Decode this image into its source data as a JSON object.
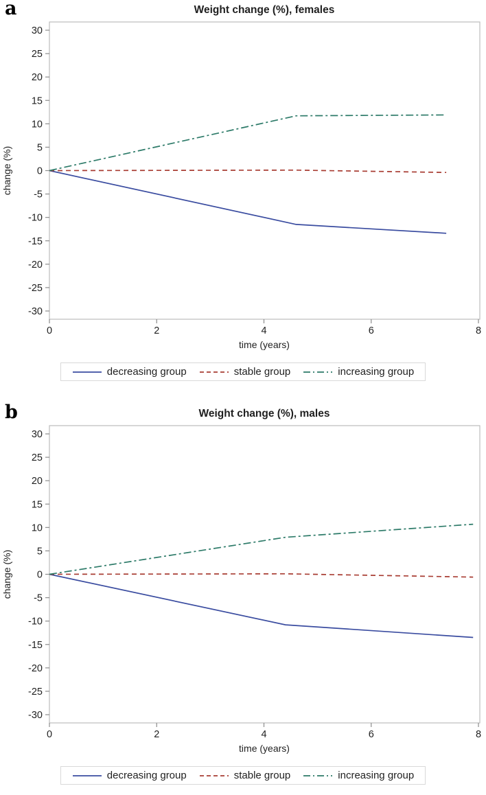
{
  "figure": {
    "colors": {
      "decreasing": "#3a4ca0",
      "stable": "#a83c32",
      "increasing": "#2c7a68",
      "plot_border": "#bcbcbc",
      "tick": "#8c8c8c",
      "text": "#1f1f1f",
      "legend_border": "#d9d9d9"
    },
    "panels": [
      {
        "panel_label": "a",
        "title": "Weight change (%), females",
        "xlabel": "time (years)",
        "ylabel": "change (%)"
      },
      {
        "panel_label": "b",
        "title": "Weight change (%), males",
        "xlabel": "time (years)",
        "ylabel": "change (%)"
      }
    ]
  },
  "chart_data": [
    {
      "type": "line",
      "title": "Weight change (%), females",
      "xlabel": "time (years)",
      "ylabel": "change (%)",
      "xlim": [
        0,
        8
      ],
      "ylim": [
        -30,
        30
      ],
      "xticks": [
        0,
        2,
        4,
        6,
        8
      ],
      "yticks": [
        30,
        25,
        20,
        15,
        10,
        5,
        0,
        -5,
        -10,
        -15,
        -20,
        -25,
        -30
      ],
      "grid": false,
      "legend_position": "bottom",
      "series": [
        {
          "name": "decreasing group",
          "style": "solid",
          "color": "#3a4ca0",
          "x": [
            0,
            4.6,
            7.4
          ],
          "y": [
            0,
            -11.5,
            -13.4
          ]
        },
        {
          "name": "stable group",
          "style": "dashed",
          "color": "#a83c32",
          "x": [
            0,
            4.6,
            7.4
          ],
          "y": [
            0,
            0.1,
            -0.4
          ]
        },
        {
          "name": "increasing group",
          "style": "dashdot",
          "color": "#2c7a68",
          "x": [
            0,
            4.6,
            7.4
          ],
          "y": [
            0,
            11.7,
            11.9
          ]
        }
      ]
    },
    {
      "type": "line",
      "title": "Weight change (%), males",
      "xlabel": "time (years)",
      "ylabel": "change (%)",
      "xlim": [
        0,
        8
      ],
      "ylim": [
        -30,
        30
      ],
      "xticks": [
        0,
        2,
        4,
        6,
        8
      ],
      "yticks": [
        30,
        25,
        20,
        15,
        10,
        5,
        0,
        -5,
        -10,
        -15,
        -20,
        -25,
        -30
      ],
      "grid": false,
      "legend_position": "bottom",
      "series": [
        {
          "name": "decreasing group",
          "style": "solid",
          "color": "#3a4ca0",
          "x": [
            0,
            4.4,
            7.9
          ],
          "y": [
            0,
            -10.8,
            -13.5
          ]
        },
        {
          "name": "stable group",
          "style": "dashed",
          "color": "#a83c32",
          "x": [
            0,
            4.4,
            7.9
          ],
          "y": [
            0,
            0.1,
            -0.6
          ]
        },
        {
          "name": "increasing group",
          "style": "dashdot",
          "color": "#2c7a68",
          "x": [
            0,
            4.4,
            7.9
          ],
          "y": [
            0,
            7.9,
            10.7
          ]
        }
      ]
    }
  ]
}
